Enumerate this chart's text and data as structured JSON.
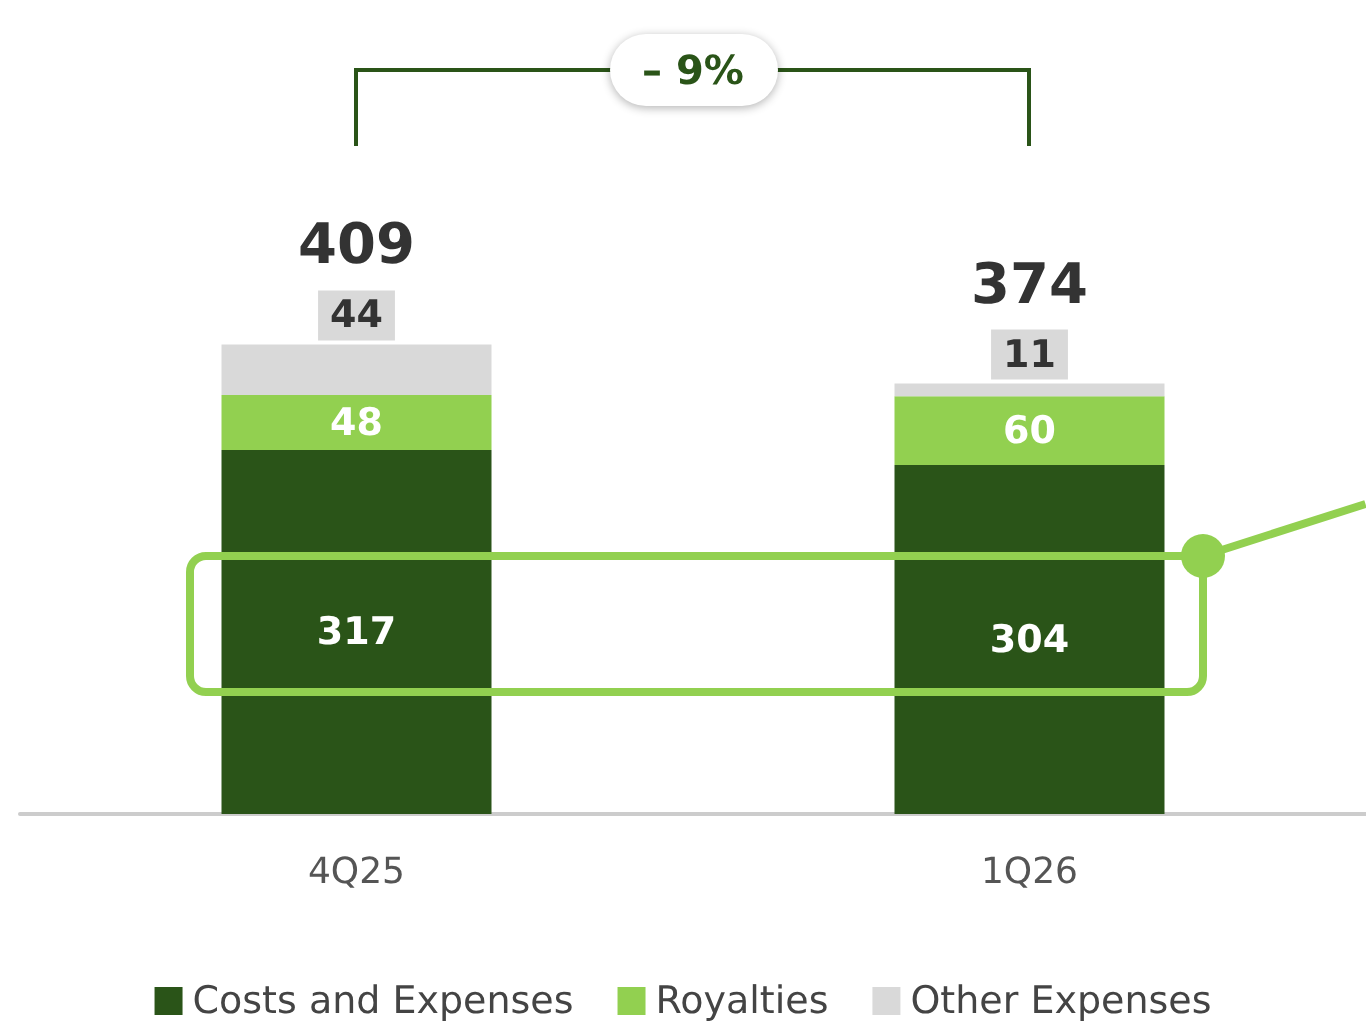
{
  "chart_data": {
    "type": "bar",
    "stacked": true,
    "categories": [
      "4Q25",
      "1Q26"
    ],
    "series": [
      {
        "name": "Costs and Expenses",
        "color": "#2a5418",
        "values": [
          317,
          304
        ]
      },
      {
        "name": "Royalties",
        "color": "#92d050",
        "values": [
          48,
          60
        ]
      },
      {
        "name": "Other Expenses",
        "color": "#d9d9d9",
        "values": [
          44,
          11
        ]
      }
    ],
    "data_labels": true,
    "totals": [
      "409",
      "374"
    ],
    "annotations": [
      "– 9%"
    ],
    "legend": "bottom"
  }
}
